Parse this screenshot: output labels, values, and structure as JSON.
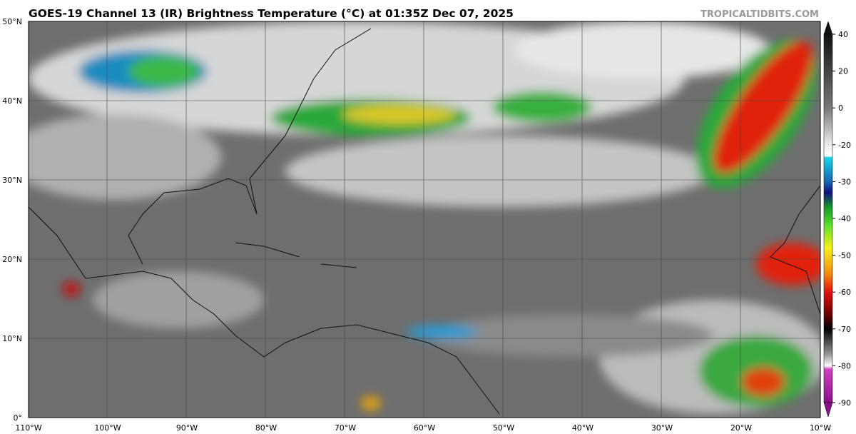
{
  "header": {
    "title": "GOES-19 Channel 13 (IR) Brightness Temperature (°C) at 01:35Z Dec 07, 2025",
    "source": "TROPICALTIDBITS.COM"
  },
  "map": {
    "latitude_labels": [
      "0°",
      "10°N",
      "20°N",
      "30°N",
      "40°N",
      "50°N"
    ],
    "longitude_labels": [
      "110°W",
      "100°W",
      "90°W",
      "80°W",
      "70°W",
      "60°W",
      "50°W",
      "40°W",
      "30°W",
      "20°W",
      "10°W"
    ]
  },
  "colorbar": {
    "ticks": [
      40,
      20,
      0,
      -20,
      -30,
      -40,
      -50,
      -60,
      -70,
      -80,
      -90
    ]
  }
}
